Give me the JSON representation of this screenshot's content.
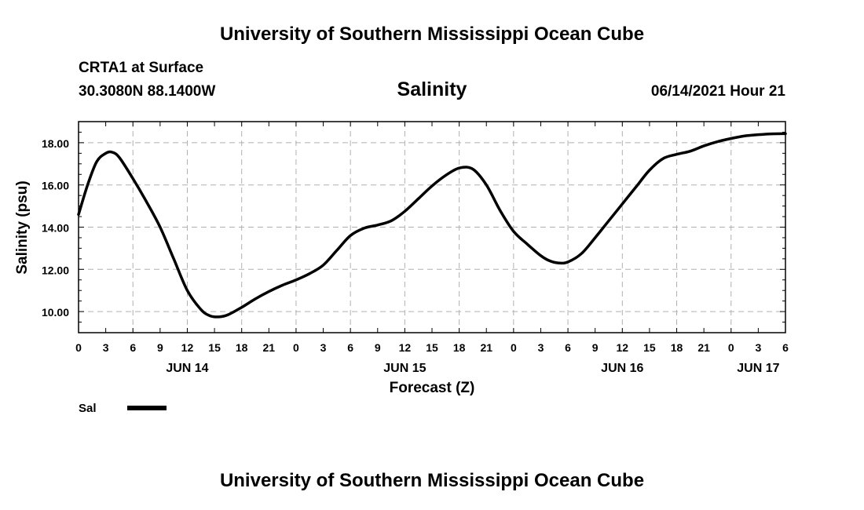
{
  "header": {
    "title": "University of Southern Mississippi Ocean Cube",
    "station": "CRTA1 at Surface",
    "coordinates": "30.3080N  88.1400W",
    "variable": "Salinity",
    "datetime": "06/14/2021 Hour 21"
  },
  "footer": {
    "title": "University of Southern Mississippi Ocean Cube"
  },
  "chart_data": {
    "type": "line",
    "title": "Salinity",
    "xlabel": "Forecast (Z)",
    "ylabel": "Salinity (psu)",
    "xlim": [
      0,
      78
    ],
    "ylim": [
      9.0,
      19.0
    ],
    "yticks": [
      10.0,
      12.0,
      14.0,
      16.0,
      18.0
    ],
    "ytick_labels": [
      "10.00",
      "12.00",
      "14.00",
      "16.00",
      "18.00"
    ],
    "xtick_labels": [
      "0",
      "3",
      "6",
      "9",
      "12",
      "15",
      "18",
      "21",
      "0",
      "3",
      "6",
      "9",
      "12",
      "15",
      "18",
      "21",
      "0",
      "3",
      "6",
      "9",
      "12",
      "15",
      "18",
      "21",
      "0",
      "3",
      "6"
    ],
    "day_labels": [
      {
        "label": "JUN 14",
        "hour": 12
      },
      {
        "label": "JUN 15",
        "hour": 36
      },
      {
        "label": "JUN 16",
        "hour": 60
      },
      {
        "label": "JUN 17",
        "hour": 75
      }
    ],
    "grid": true,
    "legend": {
      "position": "bottom-left",
      "entries": [
        {
          "label": "Sal",
          "color": "#000000"
        }
      ]
    },
    "series": [
      {
        "name": "Sal",
        "color": "#000000",
        "x": [
          0,
          1,
          2,
          3,
          3.7,
          4.5,
          6,
          7.5,
          9,
          10.5,
          12,
          13.5,
          14.5,
          15.5,
          16.5,
          18,
          19.5,
          21,
          22.5,
          24,
          25.5,
          27,
          28.5,
          30,
          31.5,
          33,
          34.5,
          36,
          37.5,
          39,
          40.5,
          42,
          43.5,
          45,
          46.5,
          48,
          49.5,
          51,
          52,
          53,
          54,
          55.5,
          57,
          58.5,
          60,
          61.5,
          63,
          64.5,
          66,
          67.5,
          69,
          70.5,
          72,
          73.5,
          75,
          76.5,
          78
        ],
        "values": [
          14.6,
          16.0,
          17.1,
          17.5,
          17.55,
          17.3,
          16.3,
          15.2,
          14.0,
          12.5,
          11.0,
          10.1,
          9.8,
          9.75,
          9.85,
          10.2,
          10.6,
          10.95,
          11.25,
          11.5,
          11.8,
          12.2,
          12.9,
          13.6,
          13.95,
          14.1,
          14.3,
          14.75,
          15.35,
          15.95,
          16.45,
          16.8,
          16.75,
          16.0,
          14.8,
          13.8,
          13.2,
          12.65,
          12.4,
          12.3,
          12.35,
          12.75,
          13.5,
          14.3,
          15.1,
          15.9,
          16.7,
          17.25,
          17.45,
          17.6,
          17.85,
          18.05,
          18.2,
          18.32,
          18.38,
          18.42,
          18.43
        ]
      }
    ]
  }
}
